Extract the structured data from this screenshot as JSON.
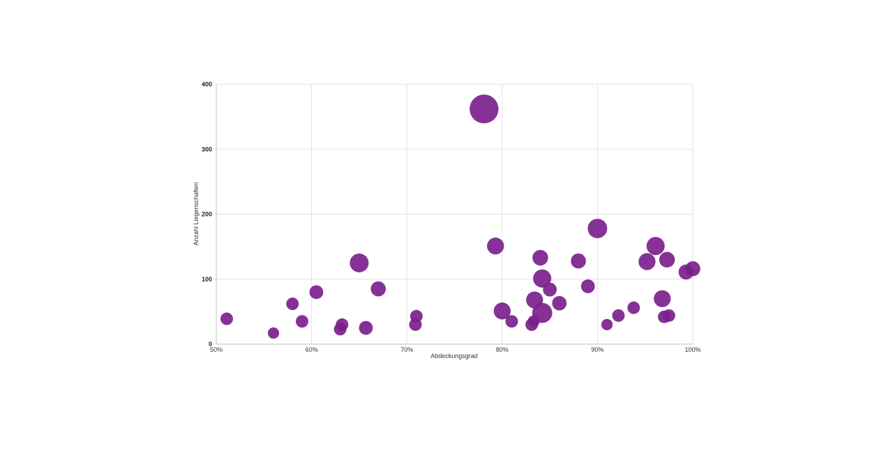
{
  "chart_data": {
    "type": "scatter",
    "title": "",
    "xlabel": "Abdeckungsgrad",
    "ylabel": "Anzahl Liegenschaften",
    "xlim": [
      0.5,
      1.0
    ],
    "ylim": [
      0,
      400
    ],
    "x_ticks": [
      {
        "value": 0.5,
        "label": "50%"
      },
      {
        "value": 0.6,
        "label": "60%"
      },
      {
        "value": 0.7,
        "label": "70%"
      },
      {
        "value": 0.8,
        "label": "80%"
      },
      {
        "value": 0.9,
        "label": "90%"
      },
      {
        "value": 1.0,
        "label": "100%"
      }
    ],
    "y_ticks": [
      {
        "value": 0,
        "label": "0"
      },
      {
        "value": 100,
        "label": "100"
      },
      {
        "value": 200,
        "label": "200"
      },
      {
        "value": 300,
        "label": "300"
      },
      {
        "value": 400,
        "label": "400"
      }
    ],
    "grid": true,
    "legend": "none",
    "marker_color": "#7b1f8c",
    "points": [
      {
        "x": 0.511,
        "y": 39,
        "size": 1.0
      },
      {
        "x": 0.56,
        "y": 17,
        "size": 0.9
      },
      {
        "x": 0.58,
        "y": 62,
        "size": 1.0
      },
      {
        "x": 0.59,
        "y": 35,
        "size": 1.0
      },
      {
        "x": 0.605,
        "y": 80,
        "size": 1.1
      },
      {
        "x": 0.63,
        "y": 23,
        "size": 1.0
      },
      {
        "x": 0.632,
        "y": 30,
        "size": 1.0
      },
      {
        "x": 0.65,
        "y": 125,
        "size": 1.5
      },
      {
        "x": 0.657,
        "y": 25,
        "size": 1.1
      },
      {
        "x": 0.67,
        "y": 85,
        "size": 1.2
      },
      {
        "x": 0.709,
        "y": 30,
        "size": 1.0
      },
      {
        "x": 0.71,
        "y": 43,
        "size": 1.0
      },
      {
        "x": 0.781,
        "y": 362,
        "size": 2.3
      },
      {
        "x": 0.793,
        "y": 151,
        "size": 1.35
      },
      {
        "x": 0.8,
        "y": 51,
        "size": 1.35
      },
      {
        "x": 0.81,
        "y": 35,
        "size": 1.0
      },
      {
        "x": 0.831,
        "y": 30,
        "size": 1.0
      },
      {
        "x": 0.833,
        "y": 35,
        "size": 0.95
      },
      {
        "x": 0.834,
        "y": 68,
        "size": 1.35
      },
      {
        "x": 0.84,
        "y": 133,
        "size": 1.25
      },
      {
        "x": 0.842,
        "y": 101,
        "size": 1.45
      },
      {
        "x": 0.842,
        "y": 48,
        "size": 1.6
      },
      {
        "x": 0.85,
        "y": 84,
        "size": 1.1
      },
      {
        "x": 0.86,
        "y": 63,
        "size": 1.15
      },
      {
        "x": 0.88,
        "y": 128,
        "size": 1.2
      },
      {
        "x": 0.89,
        "y": 89,
        "size": 1.1
      },
      {
        "x": 0.9,
        "y": 178,
        "size": 1.55
      },
      {
        "x": 0.91,
        "y": 30,
        "size": 0.9
      },
      {
        "x": 0.922,
        "y": 44,
        "size": 1.0
      },
      {
        "x": 0.938,
        "y": 56,
        "size": 1.0
      },
      {
        "x": 0.952,
        "y": 127,
        "size": 1.35
      },
      {
        "x": 0.961,
        "y": 151,
        "size": 1.45
      },
      {
        "x": 0.968,
        "y": 70,
        "size": 1.35
      },
      {
        "x": 0.97,
        "y": 42,
        "size": 1.0
      },
      {
        "x": 0.973,
        "y": 130,
        "size": 1.25
      },
      {
        "x": 0.975,
        "y": 44,
        "size": 1.0
      },
      {
        "x": 0.993,
        "y": 111,
        "size": 1.2
      },
      {
        "x": 1.0,
        "y": 116,
        "size": 1.2
      }
    ]
  }
}
